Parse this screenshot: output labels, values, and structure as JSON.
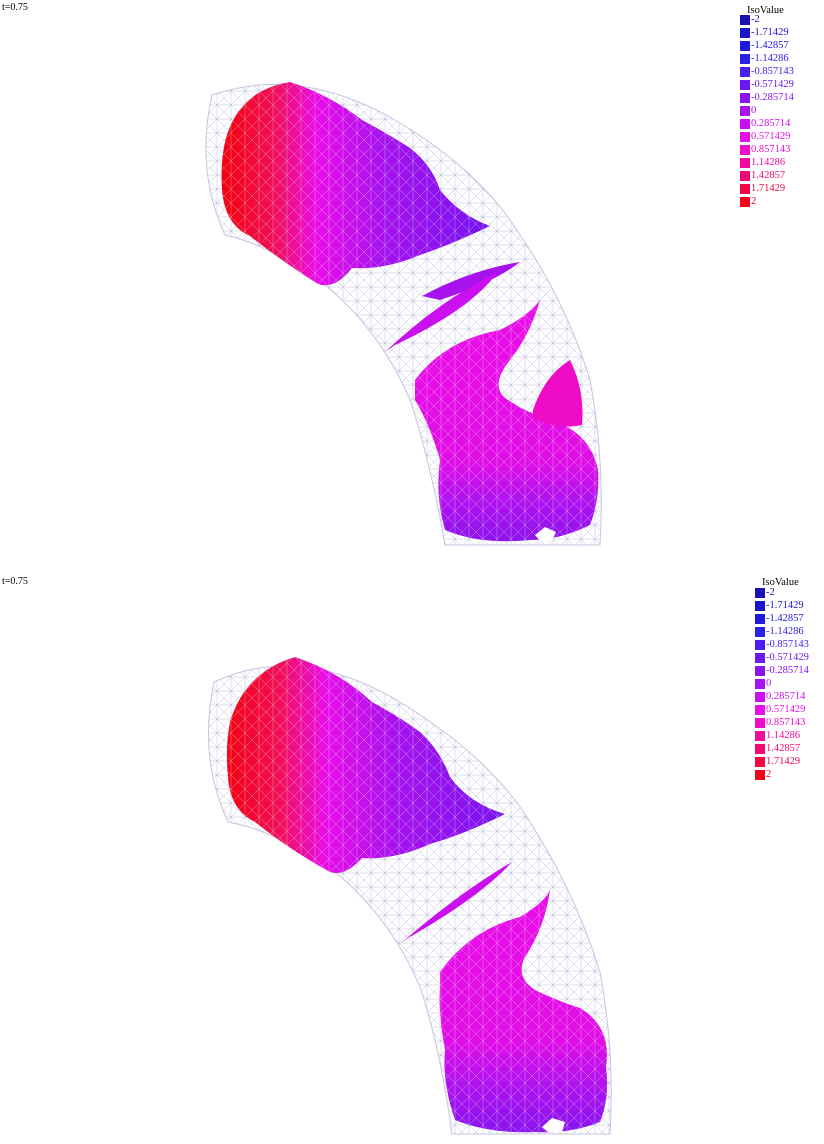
{
  "panels": [
    {
      "time_label": "t=0.75",
      "legend": {
        "title": "IsoValue",
        "levels": [
          {
            "label": "-2",
            "color": "#1c0fb4"
          },
          {
            "label": "-1.71429",
            "color": "#1a15c6"
          },
          {
            "label": "-1.42857",
            "color": "#1e1ad8"
          },
          {
            "label": "-1.14286",
            "color": "#2a20e8"
          },
          {
            "label": "-0.857143",
            "color": "#4a1ef0"
          },
          {
            "label": "-0.571429",
            "color": "#6a18f0"
          },
          {
            "label": "-0.285714",
            "color": "#8a14ee"
          },
          {
            "label": "0",
            "color": "#a812ee"
          },
          {
            "label": "0.285714",
            "color": "#cb10f0"
          },
          {
            "label": "0.571429",
            "color": "#e80ee8"
          },
          {
            "label": "0.857143",
            "color": "#ee0cc6"
          },
          {
            "label": "1.14286",
            "color": "#f00a9e"
          },
          {
            "label": "1.42857",
            "color": "#f20873"
          },
          {
            "label": "1.71429",
            "color": "#f20646"
          },
          {
            "label": "2",
            "color": "#f20418"
          }
        ]
      }
    },
    {
      "time_label": "t=0.75",
      "legend": {
        "title": "IsoValue",
        "levels": [
          {
            "label": "-2",
            "color": "#1c0fb4"
          },
          {
            "label": "-1.71429",
            "color": "#1a15c6"
          },
          {
            "label": "-1.42857",
            "color": "#1e1ad8"
          },
          {
            "label": "-1.14286",
            "color": "#2a20e8"
          },
          {
            "label": "-0.857143",
            "color": "#4a1ef0"
          },
          {
            "label": "-0.571429",
            "color": "#6a18f0"
          },
          {
            "label": "-0.285714",
            "color": "#8a14ee"
          },
          {
            "label": "0",
            "color": "#a812ee"
          },
          {
            "label": "0.285714",
            "color": "#cb10f0"
          },
          {
            "label": "0.571429",
            "color": "#e80ee8"
          },
          {
            "label": "0.857143",
            "color": "#ee0cc6"
          },
          {
            "label": "1.14286",
            "color": "#f00a9e"
          },
          {
            "label": "1.42857",
            "color": "#f20873"
          },
          {
            "label": "1.71429",
            "color": "#f20646"
          },
          {
            "label": "2",
            "color": "#f20418"
          }
        ]
      }
    }
  ]
}
